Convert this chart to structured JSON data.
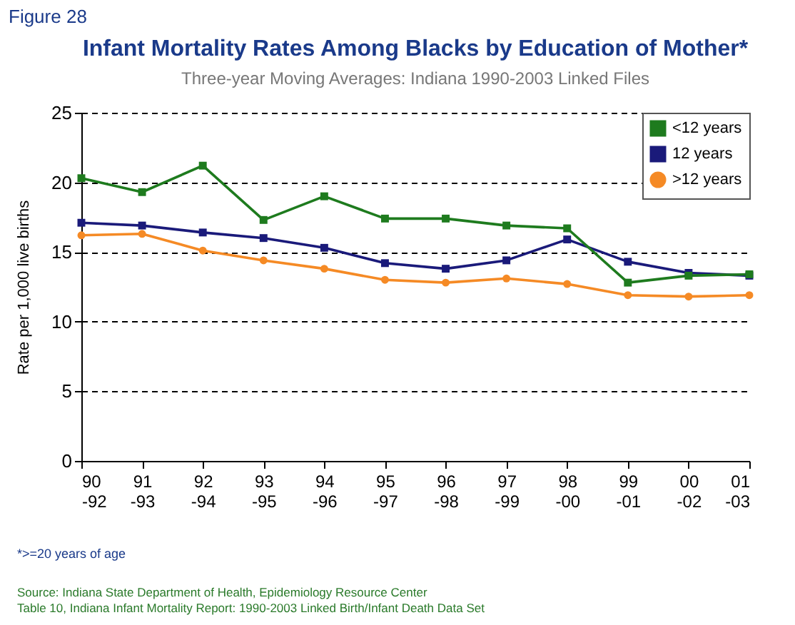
{
  "chart_data": {
    "type": "line",
    "title": "Infant Mortality Rates Among Blacks by Education of Mother*",
    "subtitle": "Three-year Moving Averages: Indiana 1990-2003 Linked Files",
    "ylabel": "Rate per 1,000 live births",
    "categories": [
      "90 -92",
      "91 -93",
      "92 -94",
      "93 -95",
      "94 -96",
      "95 -97",
      "96 -98",
      "97 -99",
      "98 -00",
      "99 -01",
      "00 -02",
      "01 -03"
    ],
    "series": [
      {
        "name": "<12 years",
        "color": "#1e7b1e",
        "marker": "square",
        "values": [
          20.3,
          19.3,
          21.2,
          17.3,
          19.0,
          17.4,
          17.4,
          16.9,
          16.7,
          12.8,
          13.3,
          13.4
        ]
      },
      {
        "name": "12 years",
        "color": "#1a1a7a",
        "marker": "square",
        "values": [
          17.1,
          16.9,
          16.4,
          16.0,
          15.3,
          14.2,
          13.8,
          14.4,
          15.9,
          14.3,
          13.5,
          13.3
        ]
      },
      {
        "name": ">12 years",
        "color": "#f58a25",
        "marker": "circle",
        "values": [
          16.2,
          16.3,
          15.1,
          14.4,
          13.8,
          13.0,
          12.8,
          13.1,
          12.7,
          11.9,
          11.8,
          11.9
        ]
      }
    ],
    "ylim": [
      0,
      25
    ],
    "yticks": [
      0,
      5,
      10,
      15,
      20,
      25
    ],
    "grid": "y",
    "legend": "top right",
    "annotations": [
      "Figure 28",
      "*>=20 years of age",
      "Source: Indiana State Department of Health, Epidemiology Resource Center",
      "Table 10, Indiana Infant Mortality Report: 1990-2003 Linked Birth/Infant Death Data Set"
    ]
  }
}
